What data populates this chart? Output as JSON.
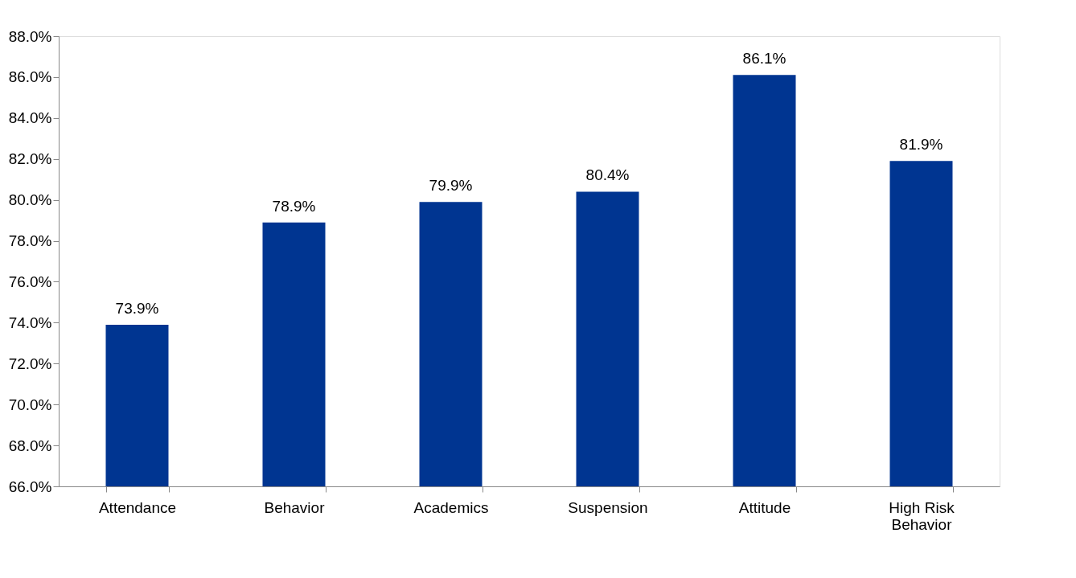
{
  "chart_data": {
    "type": "bar",
    "categories": [
      "Attendance",
      "Behavior",
      "Academics",
      "Suspension",
      "Attitude",
      "High Risk Behavior"
    ],
    "values": [
      73.9,
      78.9,
      79.9,
      80.4,
      86.1,
      81.9
    ],
    "value_labels": [
      "73.9%",
      "78.9%",
      "79.9%",
      "80.4%",
      "86.1%",
      "81.9%"
    ],
    "color": "#003591",
    "ylim": [
      66,
      88
    ],
    "yticks": [
      {
        "value": 66,
        "label": "66.0%"
      },
      {
        "value": 68,
        "label": "68.0%"
      },
      {
        "value": 70,
        "label": "70.0%"
      },
      {
        "value": 72,
        "label": "72.0%"
      },
      {
        "value": 74,
        "label": "74.0%"
      },
      {
        "value": 76,
        "label": "76.0%"
      },
      {
        "value": 78,
        "label": "78.0%"
      },
      {
        "value": 80,
        "label": "80.0%"
      },
      {
        "value": 82,
        "label": "82.0%"
      },
      {
        "value": 84,
        "label": "84.0%"
      },
      {
        "value": 86,
        "label": "86.0%"
      },
      {
        "value": 88,
        "label": "88.0%"
      }
    ],
    "grid": false
  }
}
